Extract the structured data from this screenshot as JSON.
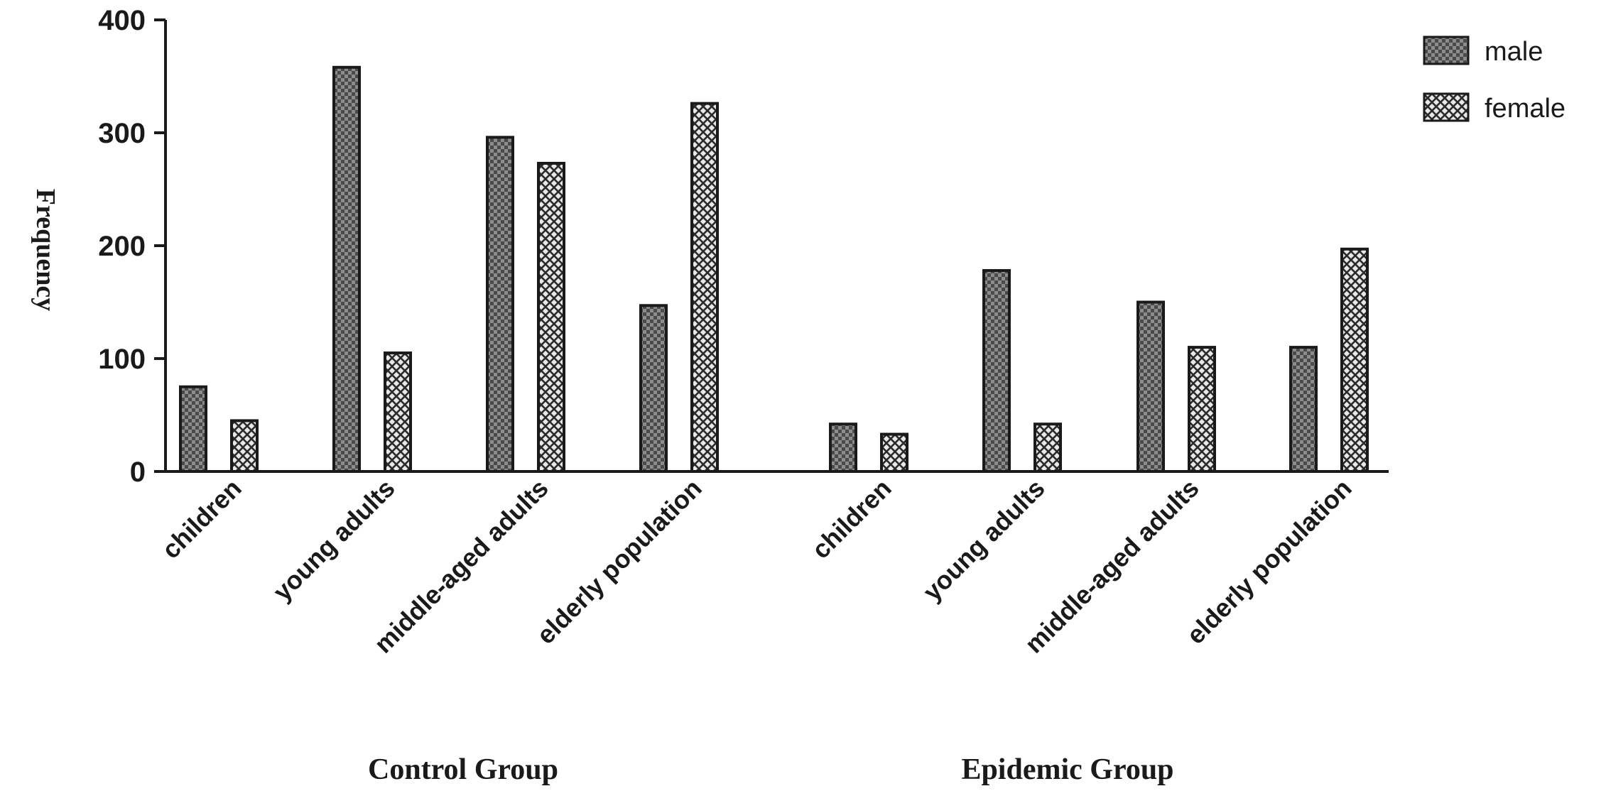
{
  "chart_data": {
    "type": "bar",
    "ylabel": "Frequency",
    "ylim": [
      0,
      400
    ],
    "yticks": [
      0,
      100,
      200,
      300,
      400
    ],
    "grid": false,
    "legend": "top-right",
    "groups": [
      {
        "label": "Control Group",
        "categories": [
          "children",
          "young adults",
          "middle-aged adults",
          "elderly population"
        ]
      },
      {
        "label": "Epidemic Group",
        "categories": [
          "children",
          "young adults",
          "middle-aged adults",
          "elderly population"
        ]
      }
    ],
    "series": [
      {
        "name": "male",
        "values": [
          75,
          358,
          296,
          147,
          42,
          178,
          150,
          110
        ]
      },
      {
        "name": "female",
        "values": [
          45,
          105,
          273,
          326,
          33,
          42,
          110,
          197
        ]
      }
    ],
    "colors": {
      "male": "#555555",
      "female": "#eeeeee",
      "axis": "#1a1a1a"
    }
  }
}
